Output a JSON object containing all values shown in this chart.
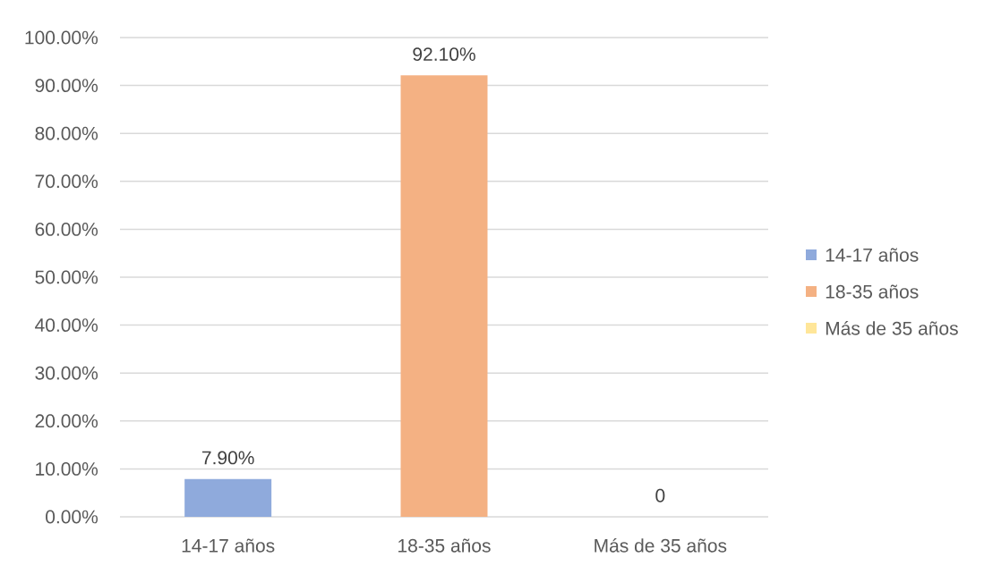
{
  "chart_data": {
    "type": "bar",
    "categories": [
      "14-17 años",
      "18-35 años",
      "Más de 35 años"
    ],
    "series": [
      {
        "name": "14-17 años",
        "color": "#8faadc",
        "values": [
          7.9,
          null,
          null
        ],
        "value_labels": [
          "7.90%",
          null,
          null
        ]
      },
      {
        "name": "18-35 años",
        "color": "#f4b183",
        "values": [
          null,
          92.1,
          null
        ],
        "value_labels": [
          null,
          "92.10%",
          null
        ]
      },
      {
        "name": "Más de 35 años",
        "color": "#ffe699",
        "values": [
          null,
          null,
          0
        ],
        "value_labels": [
          null,
          null,
          "0"
        ]
      }
    ],
    "stacked": true,
    "ylim": [
      0,
      100
    ],
    "yticks": [
      {
        "value": 0,
        "label": "0.00%"
      },
      {
        "value": 10,
        "label": "10.00%"
      },
      {
        "value": 20,
        "label": "20.00%"
      },
      {
        "value": 30,
        "label": "30.00%"
      },
      {
        "value": 40,
        "label": "40.00%"
      },
      {
        "value": 50,
        "label": "50.00%"
      },
      {
        "value": 60,
        "label": "60.00%"
      },
      {
        "value": 70,
        "label": "70.00%"
      },
      {
        "value": 80,
        "label": "80.00%"
      },
      {
        "value": 90,
        "label": "90.00%"
      },
      {
        "value": 100,
        "label": "100.00%"
      }
    ],
    "grid": "y",
    "legend": "right"
  }
}
